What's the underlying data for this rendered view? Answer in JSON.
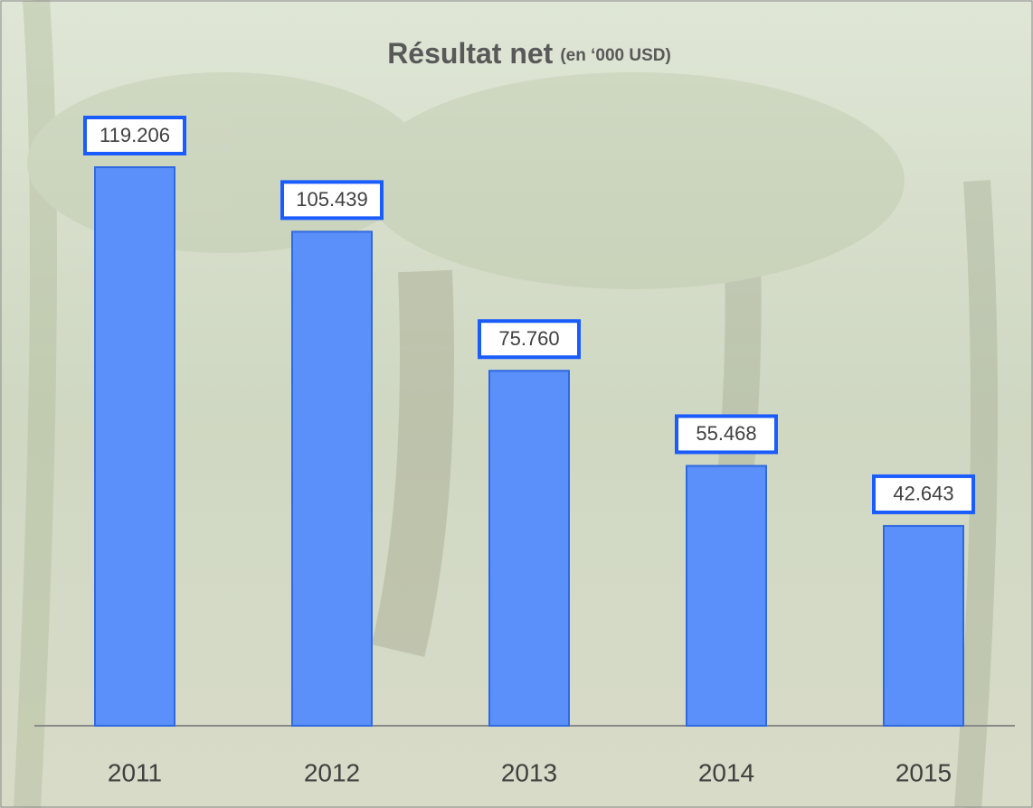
{
  "chart_data": {
    "type": "bar",
    "title": "Résultat net",
    "subtitle": "(en ‘000 USD)",
    "categories": [
      "2011",
      "2012",
      "2013",
      "2014",
      "2015"
    ],
    "values": [
      119206,
      105439,
      75760,
      55468,
      42643
    ],
    "value_labels": [
      "119.206",
      "105.439",
      "75.760",
      "55.468",
      "42.643"
    ],
    "color": "#5b8ff9"
  }
}
